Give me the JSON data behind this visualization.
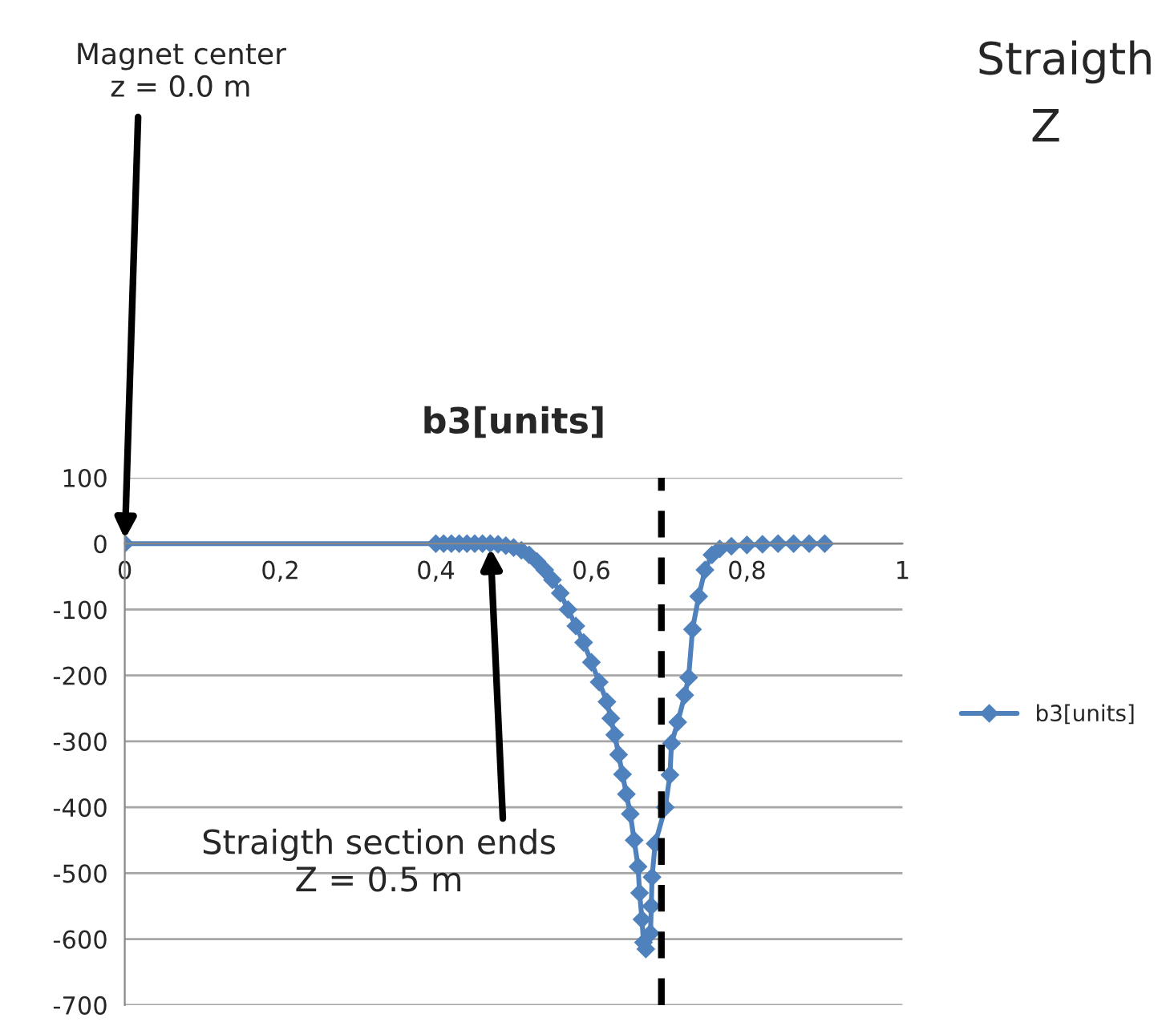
{
  "chart_data": {
    "type": "line",
    "title": "b3[units]",
    "series": [
      {
        "name": "b3[units]",
        "color": "#4f81bd",
        "x": [
          0,
          0.4,
          0.41,
          0.42,
          0.43,
          0.44,
          0.45,
          0.46,
          0.47,
          0.48,
          0.49,
          0.5,
          0.51,
          0.52,
          0.53,
          0.54,
          0.55,
          0.56,
          0.57,
          0.58,
          0.59,
          0.6,
          0.61,
          0.62,
          0.625,
          0.63,
          0.635,
          0.64,
          0.645,
          0.65,
          0.655,
          0.66,
          0.662,
          0.665,
          0.667,
          0.67,
          0.676,
          0.677,
          0.678,
          0.682,
          0.695,
          0.701,
          0.703,
          0.711,
          0.72,
          0.725,
          0.73,
          0.738,
          0.746,
          0.755,
          0.765,
          0.78,
          0.8,
          0.82,
          0.84,
          0.86,
          0.88,
          0.9
        ],
        "values": [
          0,
          0,
          0,
          0,
          0,
          0,
          0,
          0,
          0,
          -1,
          -3,
          -6,
          -10,
          -17,
          -27,
          -40,
          -55,
          -75,
          -100,
          -125,
          -150,
          -180,
          -210,
          -240,
          -265,
          -290,
          -320,
          -350,
          -380,
          -410,
          -450,
          -490,
          -530,
          -570,
          -605,
          -615,
          -591,
          -550,
          -506,
          -455,
          -400,
          -351,
          -303,
          -271,
          -230,
          -203,
          -130,
          -80,
          -40,
          -17,
          -8,
          -4,
          -2,
          -1,
          0,
          0,
          0,
          0
        ]
      }
    ],
    "xlim": [
      0,
      1
    ],
    "ylim": [
      -700,
      100
    ],
    "xticks": [
      {
        "value": 0,
        "label": "0"
      },
      {
        "value": 0.2,
        "label": "0,2"
      },
      {
        "value": 0.4,
        "label": "0,4"
      },
      {
        "value": 0.6,
        "label": "0,6"
      },
      {
        "value": 0.8,
        "label": "0,8"
      },
      {
        "value": 1,
        "label": "1"
      }
    ],
    "yticks": [
      100,
      0,
      -100,
      -200,
      -300,
      -400,
      -500,
      -600,
      -700
    ],
    "grid": "y",
    "legend": "right",
    "marker": "diamond",
    "line_style": "solid",
    "ref_lines": [
      {
        "axis": "x",
        "value": 0.69,
        "color": "#000000",
        "line_style": "dashed"
      }
    ],
    "annotations": [
      {
        "text": "Magnet center\nz = 0.0 m",
        "x": 0,
        "y": 0
      },
      {
        "text": "Straigth section ends\nZ = 0.5 m",
        "x": 0.47,
        "y": 0
      },
      "Straigth",
      "Z"
    ]
  }
}
